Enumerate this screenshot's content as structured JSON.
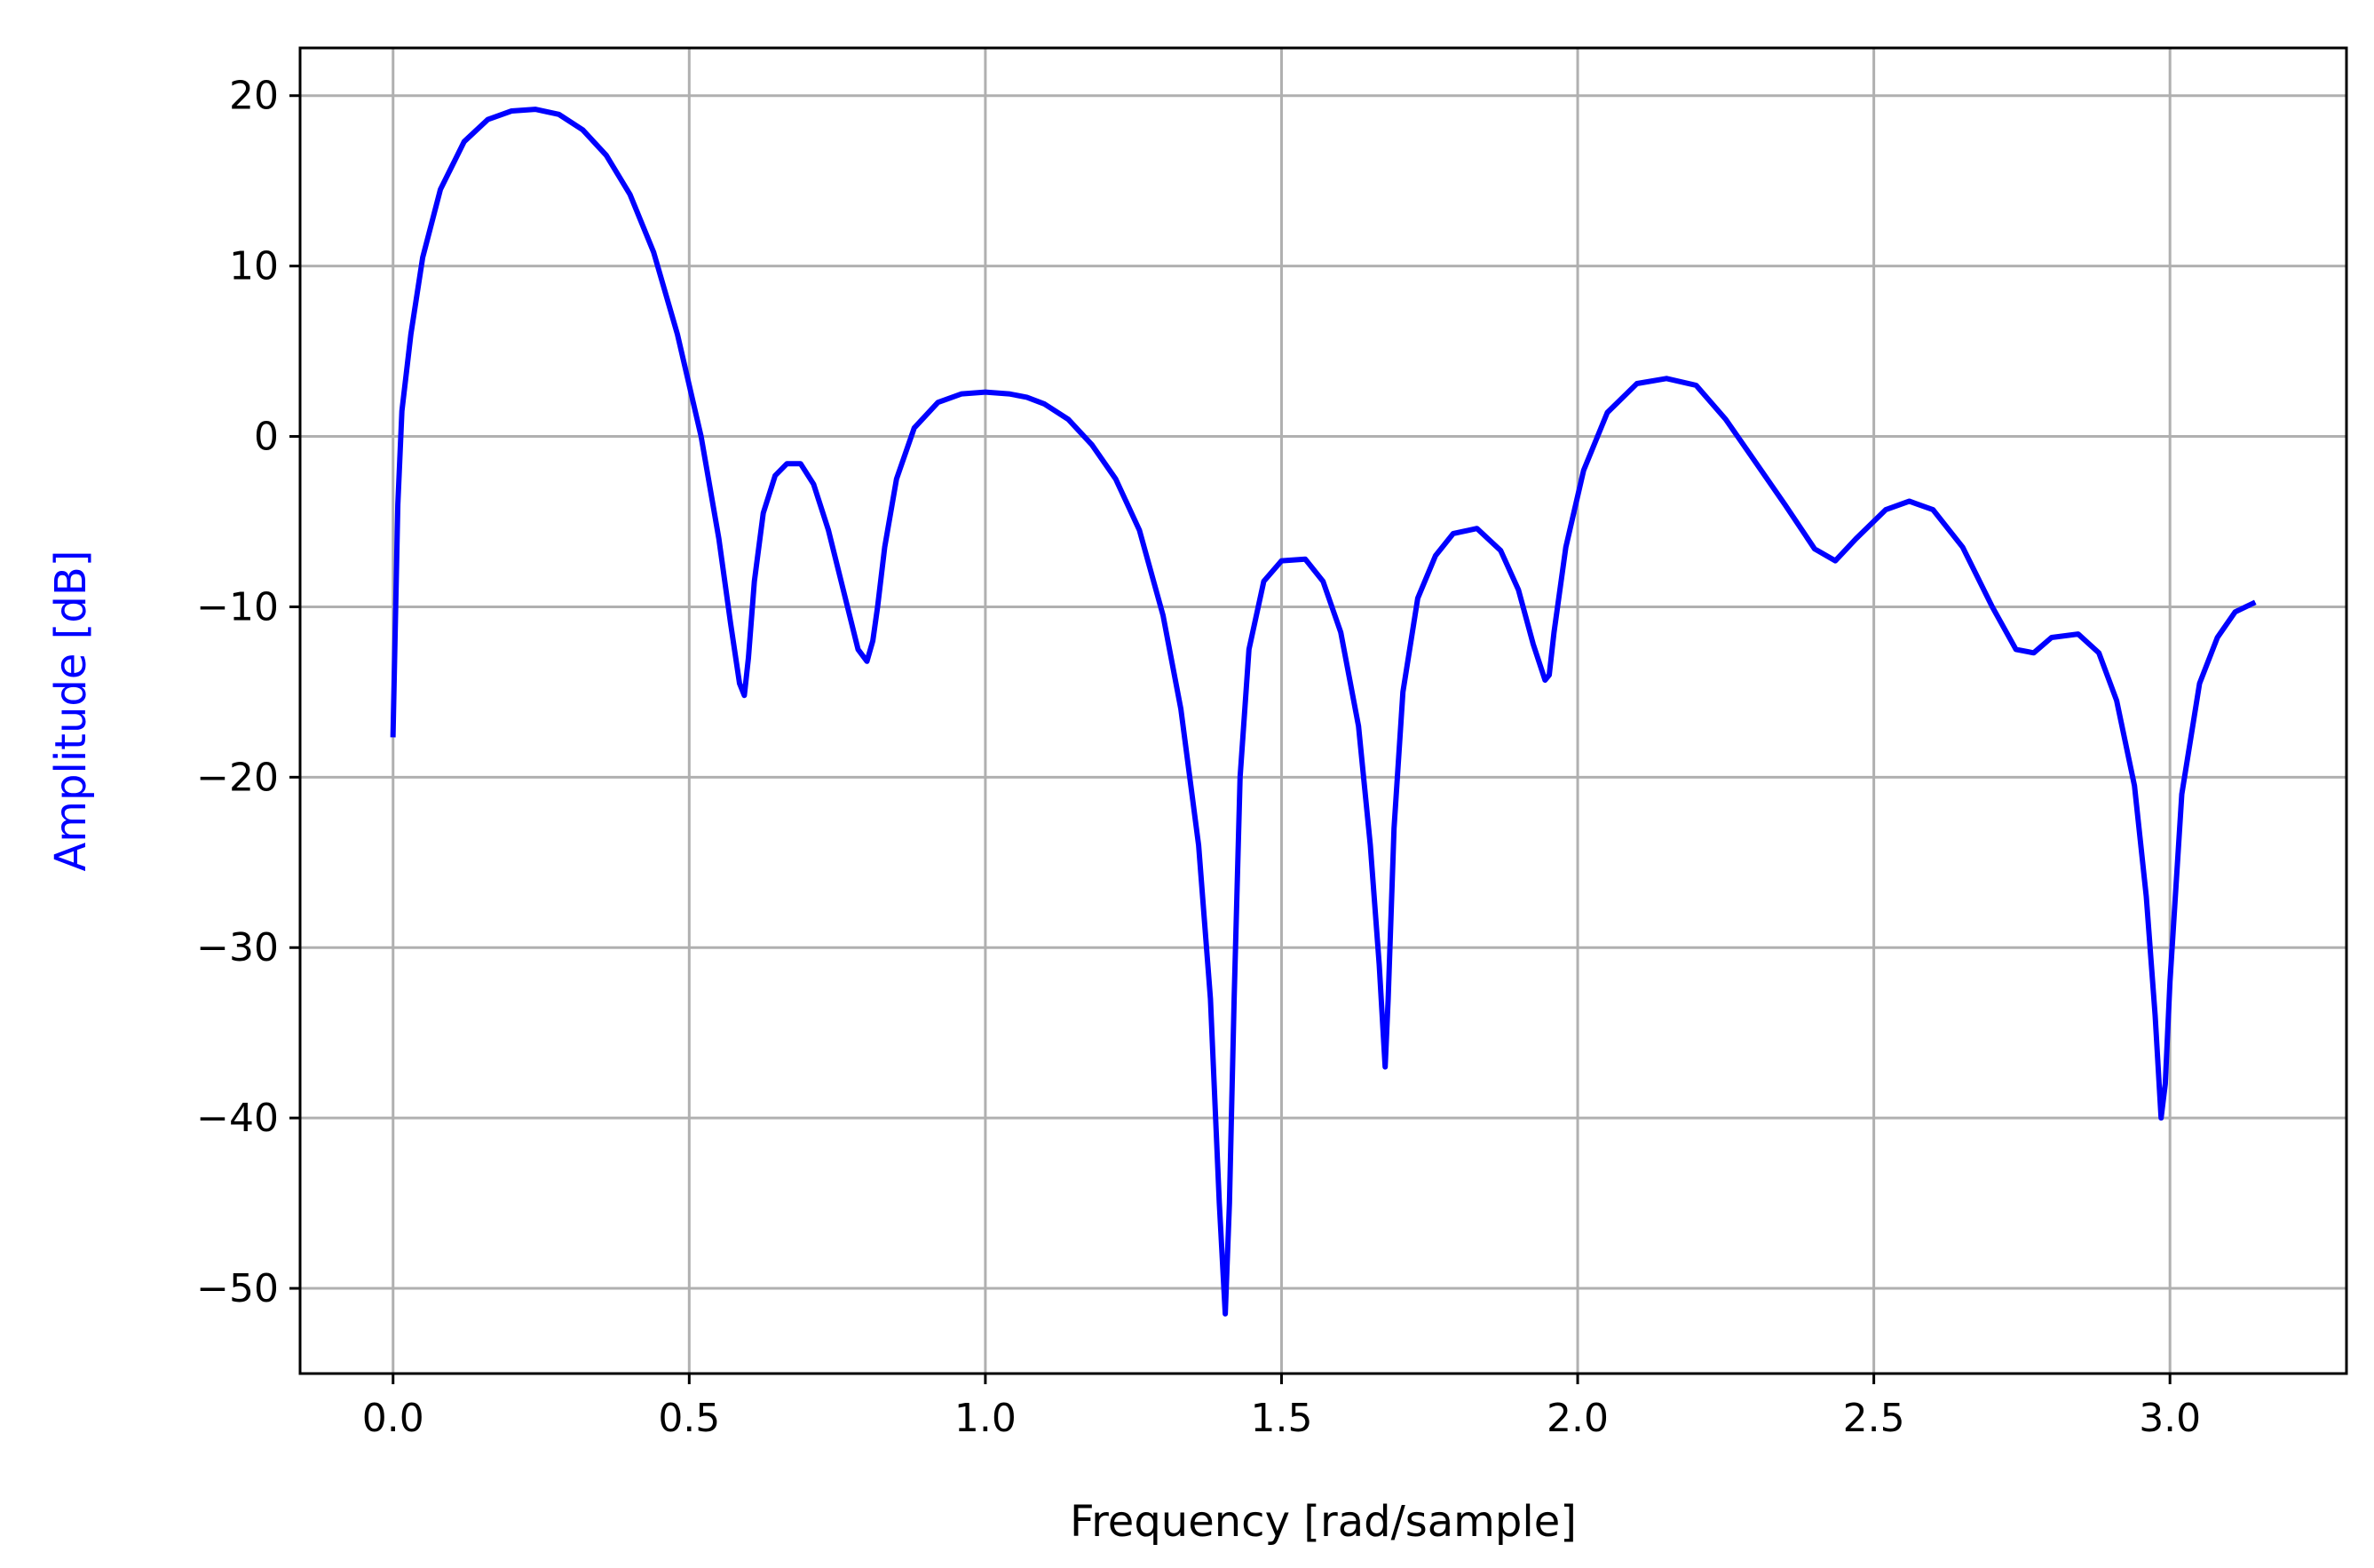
{
  "chart_data": {
    "type": "line",
    "xlabel": "Frequency [rad/sample]",
    "ylabel": "Amplitude [dB]",
    "xlim": [
      -0.157,
      3.298
    ],
    "ylim": [
      -55,
      22.8
    ],
    "xticks": [
      0.0,
      0.5,
      1.0,
      1.5,
      2.0,
      2.5,
      3.0
    ],
    "xtick_labels": [
      "0.0",
      "0.5",
      "1.0",
      "1.5",
      "2.0",
      "2.5",
      "3.0"
    ],
    "yticks": [
      20,
      10,
      0,
      -10,
      -20,
      -30,
      -40,
      -50
    ],
    "ytick_labels": [
      "20",
      "10",
      "0",
      "−10",
      "−20",
      "−30",
      "−40",
      "−50"
    ],
    "grid": true,
    "series": [
      {
        "color": "#0000ff",
        "x": [
          0.0,
          0.008,
          0.015,
          0.03,
          0.05,
          0.08,
          0.12,
          0.16,
          0.2,
          0.24,
          0.28,
          0.32,
          0.36,
          0.4,
          0.44,
          0.48,
          0.52,
          0.55,
          0.57,
          0.585,
          0.593,
          0.6,
          0.61,
          0.625,
          0.645,
          0.665,
          0.688,
          0.71,
          0.735,
          0.76,
          0.785,
          0.8,
          0.81,
          0.818,
          0.83,
          0.85,
          0.88,
          0.92,
          0.96,
          1.0,
          1.04,
          1.07,
          1.1,
          1.14,
          1.18,
          1.22,
          1.26,
          1.3,
          1.33,
          1.36,
          1.38,
          1.395,
          1.405,
          1.412,
          1.42,
          1.43,
          1.445,
          1.47,
          1.5,
          1.54,
          1.57,
          1.6,
          1.63,
          1.65,
          1.665,
          1.675,
          1.68,
          1.69,
          1.705,
          1.73,
          1.76,
          1.79,
          1.83,
          1.87,
          1.9,
          1.925,
          1.945,
          1.952,
          1.96,
          1.98,
          2.01,
          2.05,
          2.1,
          2.15,
          2.2,
          2.25,
          2.3,
          2.35,
          2.4,
          2.435,
          2.47,
          2.52,
          2.56,
          2.6,
          2.65,
          2.7,
          2.74,
          2.77,
          2.8,
          2.845,
          2.88,
          2.91,
          2.94,
          2.96,
          2.975,
          2.985,
          2.992,
          3.0,
          3.02,
          3.05,
          3.08,
          3.11,
          3.14
        ],
        "y": [
          -17.5,
          -4.0,
          1.5,
          6.0,
          10.5,
          14.5,
          17.3,
          18.6,
          19.1,
          19.2,
          18.9,
          18.0,
          16.5,
          14.2,
          10.8,
          6.0,
          0.0,
          -6.0,
          -11.0,
          -14.5,
          -15.2,
          -13.0,
          -8.5,
          -4.5,
          -2.3,
          -1.6,
          -1.6,
          -2.8,
          -5.5,
          -9.0,
          -12.5,
          -13.2,
          -12.0,
          -10.0,
          -6.5,
          -2.5,
          0.5,
          2.0,
          2.5,
          2.6,
          2.5,
          2.3,
          1.9,
          1.0,
          -0.5,
          -2.5,
          -5.5,
          -10.5,
          -16.0,
          -24.0,
          -33.0,
          -45.0,
          -51.5,
          -45.0,
          -33.0,
          -20.0,
          -12.5,
          -8.5,
          -7.3,
          -7.2,
          -8.5,
          -11.5,
          -17.0,
          -24.0,
          -31.0,
          -37.0,
          -33.0,
          -23.0,
          -15.0,
          -9.5,
          -7.0,
          -5.7,
          -5.4,
          -6.7,
          -9.0,
          -12.2,
          -14.3,
          -14.0,
          -11.5,
          -6.5,
          -2.0,
          1.4,
          3.1,
          3.4,
          3.0,
          1.0,
          -1.5,
          -4.0,
          -6.6,
          -7.3,
          -6.0,
          -4.3,
          -3.8,
          -4.3,
          -6.5,
          -10.0,
          -12.5,
          -12.7,
          -11.8,
          -11.6,
          -12.7,
          -15.5,
          -20.5,
          -27.0,
          -34.0,
          -40.0,
          -38.0,
          -32.0,
          -21.0,
          -14.5,
          -11.8,
          -10.3,
          -9.8
        ]
      }
    ]
  }
}
